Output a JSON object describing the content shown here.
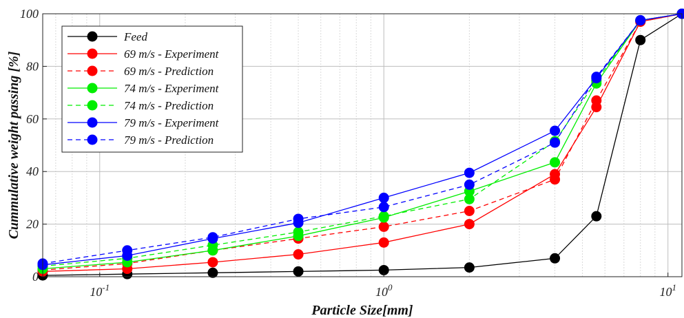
{
  "chart_data": {
    "type": "line",
    "xscale": "log",
    "xlim": [
      0.063,
      11.2
    ],
    "ylim": [
      0,
      100
    ],
    "xlabel": "Particle Size[mm]",
    "ylabel": "Cummulative weight passing [%]",
    "grid": true,
    "legend_position": "top-left",
    "x_ticks": [
      {
        "base": "10",
        "exp": "-1"
      },
      {
        "base": "10",
        "exp": "0"
      },
      {
        "base": "10",
        "exp": "1"
      }
    ],
    "y_ticks": [
      "0",
      "20",
      "40",
      "60",
      "80",
      "100"
    ],
    "x": [
      0.063,
      0.125,
      0.25,
      0.5,
      1,
      2,
      4,
      5.6,
      8,
      11.2
    ],
    "series": [
      {
        "name": "Feed",
        "color": "#000000",
        "dash": "solid",
        "values": [
          0.5,
          1,
          1.5,
          2,
          2.5,
          3.5,
          7,
          23,
          90,
          100
        ]
      },
      {
        "name": "69 m/s - Experiment",
        "color": "#ff0000",
        "dash": "solid",
        "values": [
          2,
          3,
          5.5,
          8.5,
          13,
          20,
          39,
          64.5,
          97,
          100
        ]
      },
      {
        "name": "69 m/s - Prediction",
        "color": "#ff0000",
        "dash": "dashed",
        "values": [
          2.5,
          5,
          10,
          14.5,
          19,
          25,
          37,
          67,
          97,
          100
        ]
      },
      {
        "name": "74 m/s - Experiment",
        "color": "#00ee00",
        "dash": "solid",
        "values": [
          3,
          5.5,
          10,
          15.5,
          22.5,
          32.5,
          43.5,
          73.5,
          97.5,
          100
        ]
      },
      {
        "name": "74 m/s - Prediction",
        "color": "#00ee00",
        "dash": "dashed",
        "values": [
          4,
          7,
          12,
          17,
          23,
          29.5,
          51.5,
          74.5,
          97.5,
          100
        ]
      },
      {
        "name": "79 m/s - Experiment",
        "color": "#0000ff",
        "dash": "solid",
        "values": [
          4.5,
          8,
          14.5,
          20.5,
          30,
          39.5,
          55.5,
          75.5,
          97.5,
          100
        ]
      },
      {
        "name": "79 m/s - Prediction",
        "color": "#0000ff",
        "dash": "dashed",
        "values": [
          5,
          10,
          15,
          22,
          26.5,
          35,
          51,
          76,
          97.5,
          100
        ]
      }
    ]
  }
}
